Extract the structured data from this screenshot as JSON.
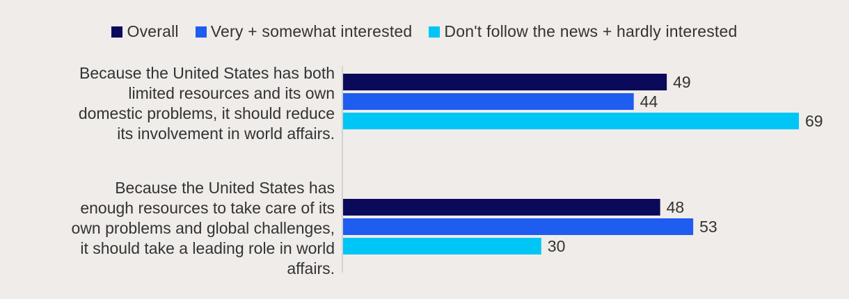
{
  "chart_data": {
    "type": "bar",
    "orientation": "horizontal",
    "title": "",
    "xlabel": "",
    "ylabel": "",
    "xlim": [
      0,
      69
    ],
    "grid": false,
    "legend_position": "top",
    "categories": [
      [
        "Because the United States has both",
        "limited resources and its own",
        "domestic problems, it should reduce",
        "its involvement in world affairs."
      ],
      [
        "Because the United States has",
        "enough resources to take care of its",
        "own problems and global challenges,",
        "it should take a leading role in world",
        "affairs."
      ]
    ],
    "series": [
      {
        "name": "Overall",
        "color": "#0b0a5a",
        "values": [
          49,
          48
        ]
      },
      {
        "name": "Very + somewhat interested",
        "color": "#1f5cf0",
        "values": [
          44,
          53
        ]
      },
      {
        "name": "Don't follow the news + hardly interested",
        "color": "#00c6f5",
        "values": [
          69,
          30
        ]
      }
    ]
  }
}
